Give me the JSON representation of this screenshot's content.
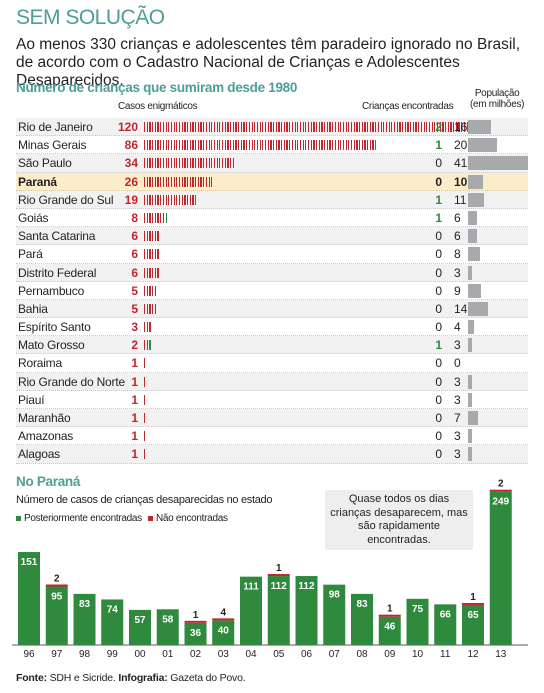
{
  "title": "SEM SOLUÇÃO",
  "subtitle": "Ao menos 330 crianças e adolescentes têm paradeiro ignorado no Brasil, de acordo com o Cadastro Nacional de Crianças e Adolescentes Desaparecidos.",
  "table_section_title": "Número de crianças que sumiram desde 1980",
  "col_casos": "Casos enigmáticos",
  "col_encontradas": "Crianças encontradas",
  "col_pop_line1": "População",
  "col_pop_line2": "(em milhões)",
  "colors": {
    "accent": "#4d9e95",
    "red": "#c0262d",
    "green": "#2f8a3e",
    "highlight": "#fbedc9",
    "grey": "#a7a9ac"
  },
  "table_rows": [
    {
      "state": "Rio de Janeiro",
      "cases": "120",
      "found": "2",
      "pop": "16"
    },
    {
      "state": "Minas Gerais",
      "cases": "86",
      "found": "1",
      "pop": "20"
    },
    {
      "state": "São Paulo",
      "cases": "34",
      "found": "0",
      "pop": "41"
    },
    {
      "state": "Paraná",
      "cases": "26",
      "found": "0",
      "pop": "10"
    },
    {
      "state": "Rio Grande do Sul",
      "cases": "19",
      "found": "1",
      "pop": "11"
    },
    {
      "state": "Goiás",
      "cases": "8",
      "found": "1",
      "pop": "6"
    },
    {
      "state": "Santa Catarina",
      "cases": "6",
      "found": "0",
      "pop": "6"
    },
    {
      "state": "Pará",
      "cases": "6",
      "found": "0",
      "pop": "8"
    },
    {
      "state": "Distrito Federal",
      "cases": "6",
      "found": "0",
      "pop": "3"
    },
    {
      "state": "Pernambuco",
      "cases": "5",
      "found": "0",
      "pop": "9"
    },
    {
      "state": "Bahia",
      "cases": "5",
      "found": "0",
      "pop": "14"
    },
    {
      "state": "Espírito Santo",
      "cases": "3",
      "found": "0",
      "pop": "4"
    },
    {
      "state": "Mato Grosso",
      "cases": "2",
      "found": "1",
      "pop": "3"
    },
    {
      "state": "Roraima",
      "cases": "1",
      "found": "0",
      "pop": "0"
    },
    {
      "state": "Rio Grande do Norte",
      "cases": "1",
      "found": "0",
      "pop": "3"
    },
    {
      "state": "Piauí",
      "cases": "1",
      "found": "0",
      "pop": "3"
    },
    {
      "state": "Maranhão",
      "cases": "1",
      "found": "0",
      "pop": "7"
    },
    {
      "state": "Amazonas",
      "cases": "1",
      "found": "0",
      "pop": "3"
    },
    {
      "state": "Alagoas",
      "cases": "1",
      "found": "0",
      "pop": "3"
    }
  ],
  "chart_section_title": "No Paraná",
  "chart_subtitle": "Número de casos de crianças desaparecidas no estado",
  "legend_found": "Posteriormente encontradas",
  "legend_not_found": "Não encontradas",
  "note": "Quase todos os dias crianças desaparecem, mas são rapidamente encontradas.",
  "footer_source_label": "Fonte:",
  "footer_source": "SDH e Sicride.",
  "footer_infographic_label": "Infografia:",
  "footer_infographic": "Gazeta do Povo.",
  "chart_data": {
    "type": "bar",
    "categories": [
      "96",
      "97",
      "98",
      "99",
      "00",
      "01",
      "02",
      "03",
      "04",
      "05",
      "06",
      "07",
      "08",
      "09",
      "10",
      "11",
      "12",
      "13"
    ],
    "series": [
      {
        "name": "Posteriormente encontradas",
        "values": [
          151,
          95,
          83,
          74,
          57,
          58,
          36,
          40,
          111,
          112,
          112,
          98,
          83,
          46,
          75,
          66,
          65,
          249
        ]
      },
      {
        "name": "Não encontradas",
        "values": [
          0,
          2,
          0,
          0,
          0,
          0,
          1,
          4,
          0,
          1,
          0,
          0,
          0,
          1,
          0,
          0,
          1,
          2
        ]
      }
    ],
    "ylim": [
      0,
      255
    ]
  }
}
